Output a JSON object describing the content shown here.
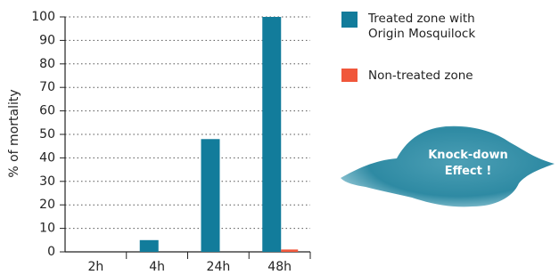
{
  "chart_data": {
    "type": "bar",
    "y_label": "% of mortality",
    "categories": [
      "2h",
      "4h",
      "24h",
      "48h"
    ],
    "series": [
      {
        "name": "Treated zone with Origin Mosquilock",
        "color": "#127c9b",
        "values": [
          0,
          5,
          48,
          100
        ]
      },
      {
        "name": "Non-treated zone",
        "color": "#f0573b",
        "values": [
          0,
          0,
          0,
          1
        ]
      }
    ],
    "ylim": [
      0,
      100
    ],
    "yticks": [
      0,
      10,
      20,
      30,
      40,
      50,
      60,
      70,
      80,
      90,
      100
    ],
    "grid": true,
    "annotation": "Knock-down Effect !"
  }
}
